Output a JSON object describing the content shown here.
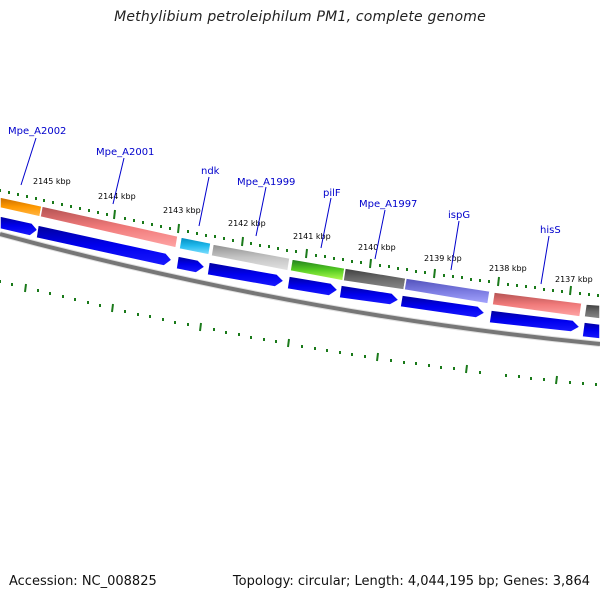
{
  "title": "Methylibium petroleiphilum PM1, complete genome",
  "accession": "Accession: NC_008825",
  "summary": "Topology: circular; Length: 4,044,195 bp; Genes: 3,864",
  "colors": {
    "backbone": "#7a7a7a",
    "cds": "#0000ee",
    "tick": "#1a7a1a",
    "label": "#0000cc"
  },
  "position_labels": [
    "2145 kbp",
    "2144 kbp",
    "2143 kbp",
    "2142 kbp",
    "2141 kbp",
    "2140 kbp",
    "2139 kbp",
    "2138 kbp",
    "2137 kbp"
  ],
  "gene_labels": [
    "Mpe_A2002",
    "Mpe_A2001",
    "ndk",
    "Mpe_A1999",
    "pilF",
    "Mpe_A1997",
    "ispG",
    "hisS"
  ]
}
